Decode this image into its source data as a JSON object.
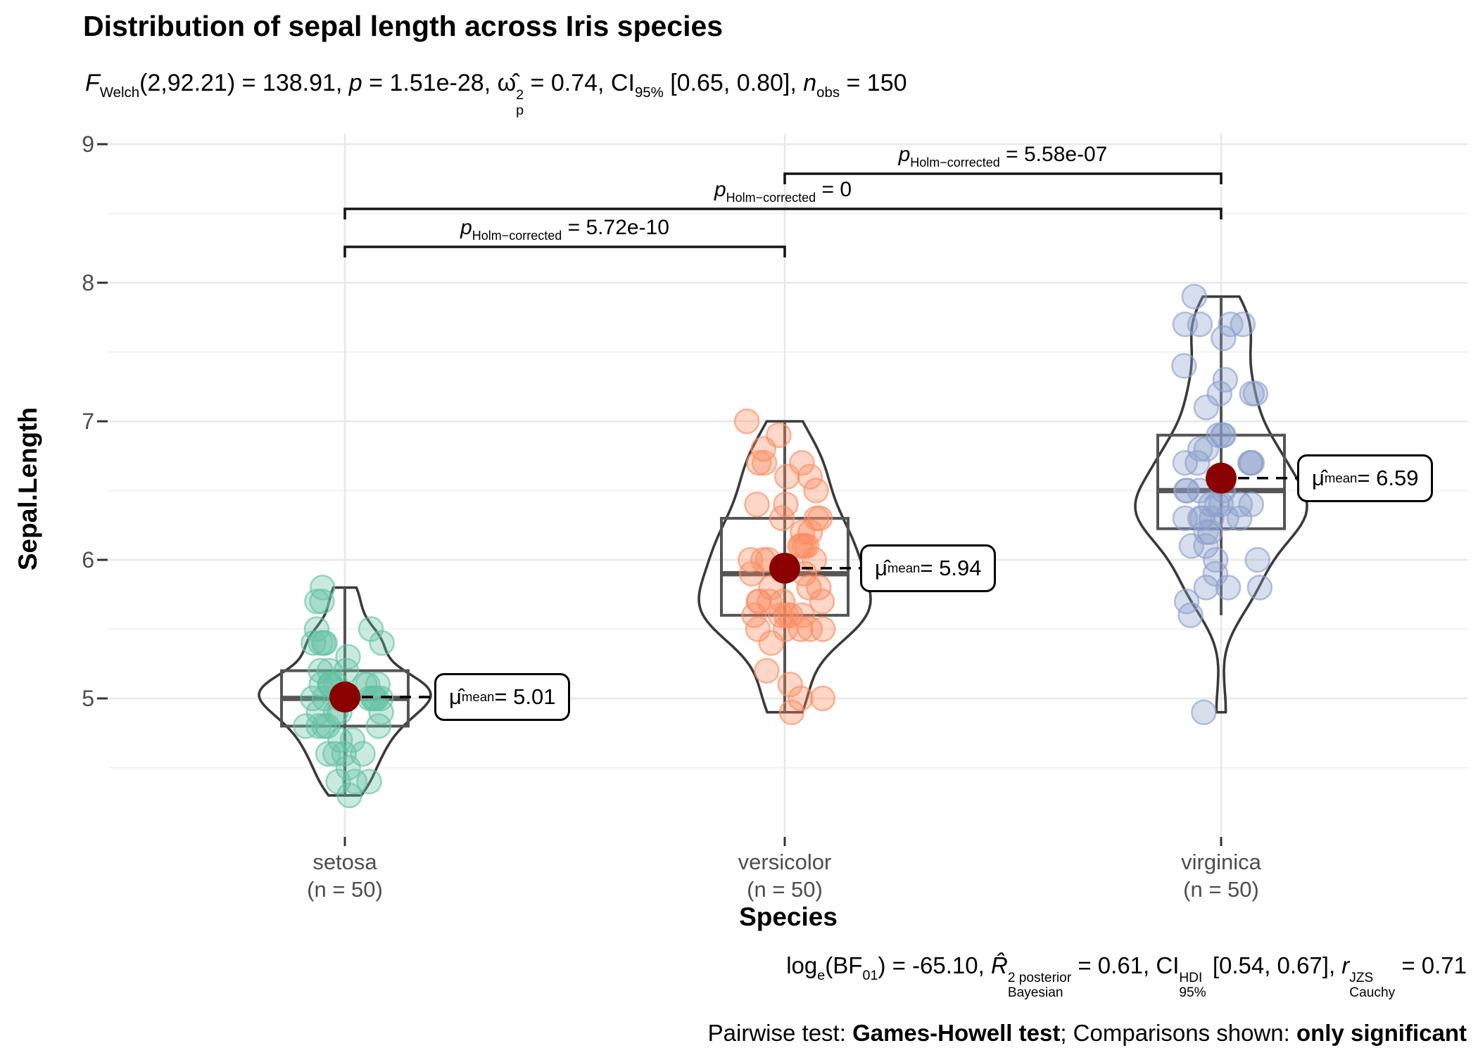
{
  "title": "Distribution of sepal length across Iris species",
  "axes": {
    "y_title": "Sepal.Length",
    "x_title": "Species",
    "y_ticks": [
      "9",
      "8",
      "7",
      "6",
      "5"
    ]
  },
  "colors": {
    "mean_dot": "#8B0000",
    "violin_stroke": "#3A3A3A",
    "box_stroke": "#545454",
    "bracket_stroke": "#141414",
    "grid_major": "#E8E8E8",
    "grid_minor": "#F3F3F3",
    "axis_tick": "#333333",
    "tick_label": "#4D4D4D",
    "setosa_points": "#66C2A5",
    "versicolor_points": "#FC8D62",
    "virginica_points": "#8DA0CB"
  },
  "rich": {
    "subtitle": [
      {
        "text": "F",
        "italic": true
      },
      {
        "sub": "Welch"
      },
      {
        "text": "(2,92.21) = 138.91, "
      },
      {
        "text": "p",
        "italic": true
      },
      {
        "text": " = 1.51e-28, "
      },
      {
        "text": "ω̂"
      },
      {
        "sup": "2",
        "sub": "p"
      },
      {
        "text": " = 0.74, CI"
      },
      {
        "sub": "95%"
      },
      {
        "text": " [0.65, 0.80], "
      },
      {
        "text": "n",
        "italic": true
      },
      {
        "sub": "obs"
      },
      {
        "text": " = 150"
      }
    ],
    "caption_bayes": [
      {
        "text": "log"
      },
      {
        "sub": "e"
      },
      {
        "text": "(BF"
      },
      {
        "sub": "01"
      },
      {
        "text": ") = -65.10, "
      },
      {
        "text": "R̂",
        "italic": true
      },
      {
        "sup": "2 posterior",
        "sub": "Bayesian"
      },
      {
        "text": " = 0.61, CI"
      },
      {
        "sup": "HDI",
        "sub": "95%"
      },
      {
        "text": " [0.54, 0.67], "
      },
      {
        "text": "r",
        "italic": true
      },
      {
        "sup": "JZS",
        "sub": "Cauchy"
      },
      {
        "text": " = 0.71"
      }
    ],
    "caption_pairwise": [
      {
        "text": "Pairwise test: "
      },
      {
        "text": "Games-Howell test",
        "bold": true
      },
      {
        "text": "; Comparisons shown: "
      },
      {
        "text": "only significant",
        "bold": true
      }
    ]
  },
  "chart_data": {
    "type": "violin",
    "subtype": "violin+box+jittered-points (ggbetweenstats style)",
    "title": "Distribution of sepal length across Iris species",
    "xlabel": "Species",
    "ylabel": "Sepal.Length",
    "ylim": [
      4.0,
      9.1
    ],
    "y_major_ticks": [
      9,
      8,
      7,
      6,
      5
    ],
    "y_minor_ticks": [
      8.5,
      7.5,
      6.5,
      5.5,
      4.5
    ],
    "grid": true,
    "categories": [
      "setosa",
      "versicolor",
      "virginica"
    ],
    "category_tick_labels": [
      [
        "setosa",
        "(n = 50)"
      ],
      [
        "versicolor",
        "(n = 50)"
      ],
      [
        "virginica",
        "(n = 50)"
      ]
    ],
    "series": [
      {
        "name": "setosa",
        "n": 50,
        "point_color": "#66C2A5",
        "mean": 5.01,
        "box": {
          "whisker_low": 4.3,
          "q1": 4.8,
          "median": 5.0,
          "q3": 5.2,
          "whisker_high": 5.8
        },
        "values": [
          5.1,
          4.9,
          4.7,
          4.6,
          5.0,
          5.4,
          4.6,
          5.0,
          4.4,
          4.9,
          5.4,
          4.8,
          4.8,
          4.3,
          5.8,
          5.7,
          5.4,
          5.1,
          5.7,
          5.1,
          5.4,
          5.1,
          4.6,
          5.1,
          4.8,
          5.0,
          5.0,
          5.2,
          5.2,
          4.7,
          4.8,
          5.4,
          5.2,
          5.5,
          4.9,
          5.0,
          5.5,
          4.9,
          4.4,
          5.1,
          5.0,
          4.5,
          4.4,
          5.0,
          5.1,
          4.8,
          5.1,
          4.6,
          5.3,
          5.0
        ]
      },
      {
        "name": "versicolor",
        "n": 50,
        "point_color": "#FC8D62",
        "mean": 5.94,
        "box": {
          "whisker_low": 4.9,
          "q1": 5.6,
          "median": 5.9,
          "q3": 6.3,
          "whisker_high": 7.0
        },
        "values": [
          7.0,
          6.4,
          6.9,
          5.5,
          6.5,
          5.7,
          6.3,
          4.9,
          6.6,
          5.2,
          5.0,
          5.9,
          6.0,
          6.1,
          5.6,
          6.7,
          5.6,
          5.8,
          6.2,
          5.6,
          5.9,
          6.1,
          6.3,
          6.1,
          6.4,
          6.6,
          6.8,
          6.7,
          6.0,
          5.7,
          5.5,
          5.5,
          5.8,
          6.0,
          5.4,
          6.0,
          6.7,
          6.3,
          5.6,
          5.5,
          5.5,
          6.1,
          5.8,
          5.0,
          5.6,
          5.7,
          5.7,
          6.2,
          5.1,
          5.7
        ]
      },
      {
        "name": "virginica",
        "n": 50,
        "point_color": "#8DA0CB",
        "mean": 6.59,
        "box": {
          "whisker_low": 5.6,
          "q1": 6.225,
          "median": 6.5,
          "q3": 6.9,
          "whisker_high": 7.9
        },
        "values": [
          6.3,
          5.8,
          7.1,
          6.3,
          6.5,
          7.6,
          4.9,
          7.3,
          6.7,
          7.2,
          6.5,
          6.4,
          6.8,
          5.7,
          5.8,
          6.4,
          6.5,
          7.7,
          7.7,
          6.0,
          6.9,
          5.6,
          7.7,
          6.3,
          6.7,
          7.2,
          6.2,
          6.1,
          6.4,
          7.2,
          7.4,
          7.9,
          6.4,
          6.3,
          6.1,
          7.7,
          6.3,
          6.4,
          6.0,
          6.9,
          6.7,
          6.9,
          5.8,
          6.8,
          6.7,
          6.7,
          6.3,
          6.5,
          6.2,
          5.9
        ]
      }
    ],
    "mean_label_segments": [
      [
        {
          "text": "μ̂"
        },
        {
          "sub": "mean"
        },
        {
          "text": " = 5.01"
        }
      ],
      [
        {
          "text": "μ̂"
        },
        {
          "sub": "mean"
        },
        {
          "text": " = 5.94"
        }
      ],
      [
        {
          "text": "μ̂"
        },
        {
          "sub": "mean"
        },
        {
          "text": " = 6.59"
        }
      ]
    ],
    "comparisons": [
      {
        "groups": [
          1,
          2
        ],
        "label_segments": [
          {
            "text": "p",
            "italic": true
          },
          {
            "sub": "Holm−corrected"
          },
          {
            "text": " = 5.58e-07"
          }
        ]
      },
      {
        "groups": [
          0,
          2
        ],
        "label_segments": [
          {
            "text": "p",
            "italic": true
          },
          {
            "sub": "Holm−corrected"
          },
          {
            "text": " = 0"
          }
        ]
      },
      {
        "groups": [
          0,
          1
        ],
        "label_segments": [
          {
            "text": "p",
            "italic": true
          },
          {
            "sub": "Holm−corrected"
          },
          {
            "text": " = 5.72e-10"
          }
        ]
      }
    ],
    "legend": null
  }
}
